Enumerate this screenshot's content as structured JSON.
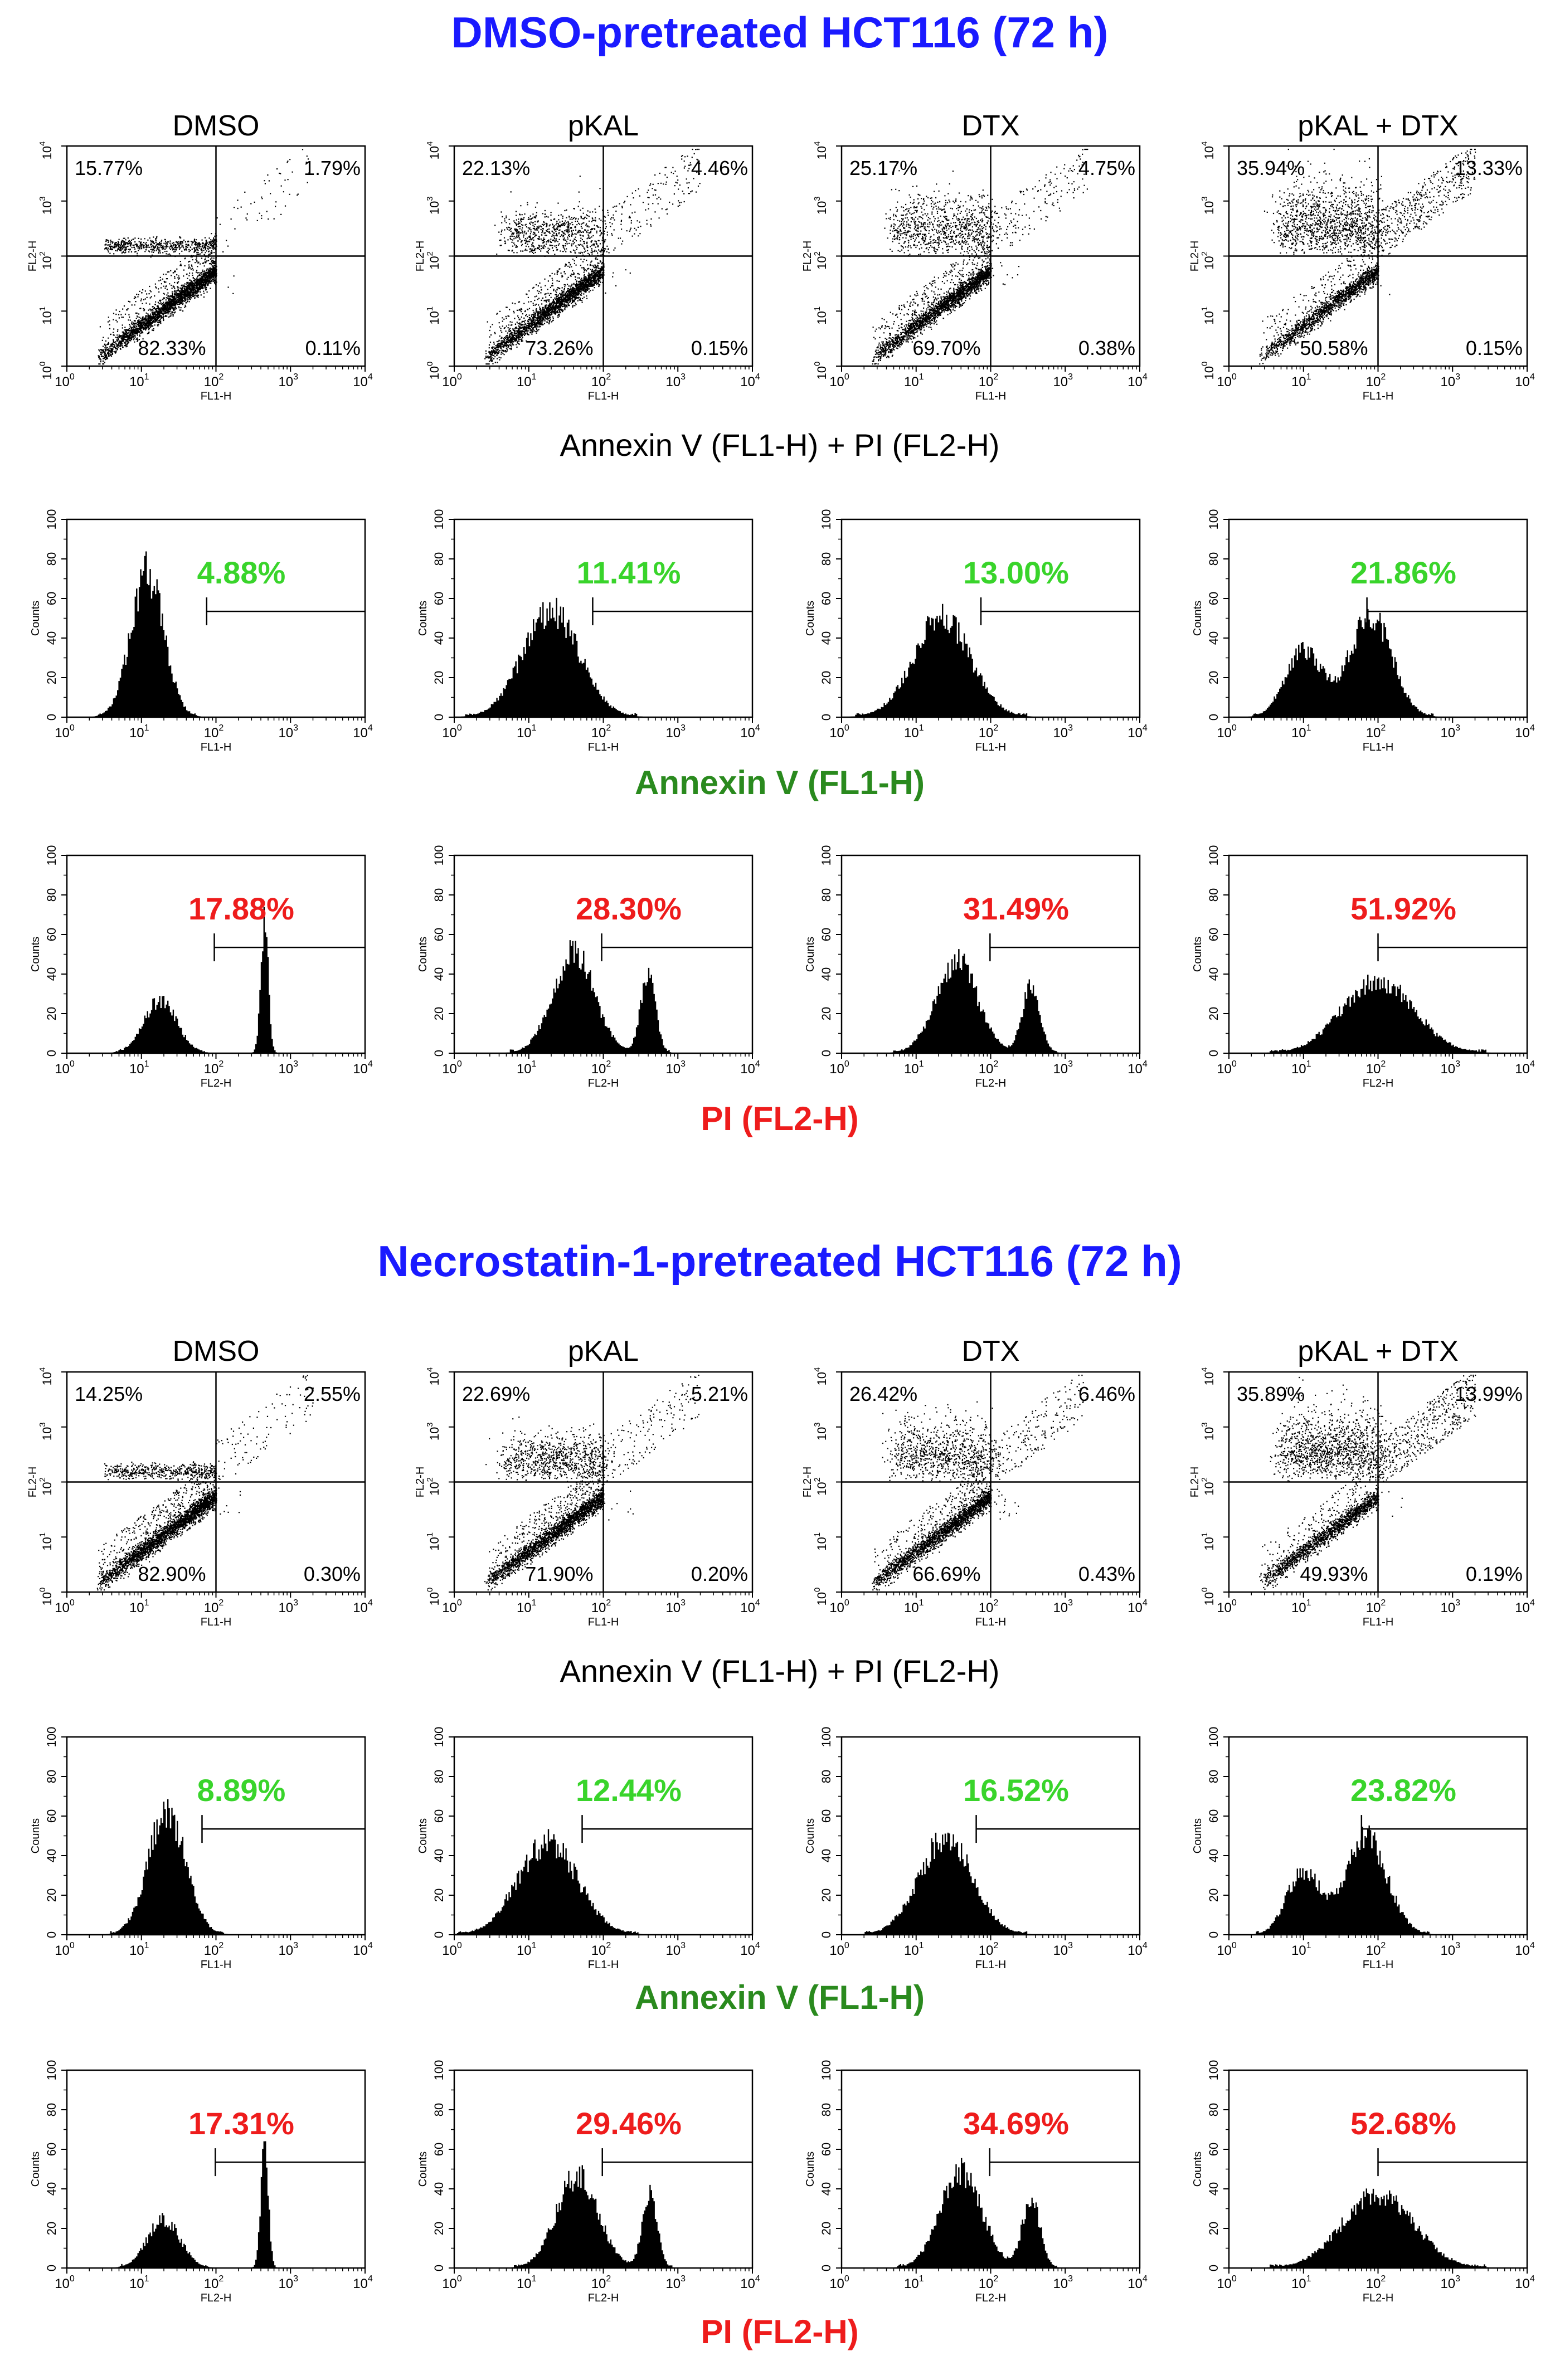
{
  "colors": {
    "title": "#1a1aff",
    "annexin": "#2a8a1e",
    "annexin_value": "#39d42b",
    "pi": "#ee1c1c",
    "black": "#000000"
  },
  "chart_data": {
    "type": "flow-cytometry-panels",
    "columns": [
      "DMSO",
      "pKAL",
      "DTX",
      "pKAL + DTX"
    ],
    "sections": [
      {
        "title": "DMSO-pretreated HCT116 (72 h)",
        "scatter": {
          "type": "scatter",
          "xlabel": "FL1-H",
          "ylabel": "FL2-H",
          "caption": "Annexin V (FL1-H) + PI (FL2-H)",
          "quadrants": [
            {
              "ul": "15.77%",
              "ur": "1.79%",
              "ll": "82.33%",
              "lr": "0.11%"
            },
            {
              "ul": "22.13%",
              "ur": "4.46%",
              "ll": "73.26%",
              "lr": "0.15%"
            },
            {
              "ul": "25.17%",
              "ur": "4.75%",
              "ll": "69.70%",
              "lr": "0.38%"
            },
            {
              "ul": "35.94%",
              "ur": "13.33%",
              "ll": "50.58%",
              "lr": "0.15%"
            }
          ]
        },
        "annexin": {
          "type": "histogram",
          "xlabel": "FL1-H",
          "ylabel": "Counts",
          "caption": "Annexin V (FL1-H)",
          "values": [
            "4.88%",
            "11.41%",
            "13.00%",
            "21.86%"
          ]
        },
        "pi": {
          "type": "histogram",
          "xlabel": "FL2-H",
          "ylabel": "Counts",
          "caption": "PI (FL2-H)",
          "values": [
            "17.88%",
            "28.30%",
            "31.49%",
            "51.92%"
          ]
        }
      },
      {
        "title": "Necrostatin-1-pretreated HCT116 (72 h)",
        "scatter": {
          "type": "scatter",
          "xlabel": "FL1-H",
          "ylabel": "FL2-H",
          "caption": "Annexin V (FL1-H) + PI (FL2-H)",
          "quadrants": [
            {
              "ul": "14.25%",
              "ur": "2.55%",
              "ll": "82.90%",
              "lr": "0.30%"
            },
            {
              "ul": "22.69%",
              "ur": "5.21%",
              "ll": "71.90%",
              "lr": "0.20%"
            },
            {
              "ul": "26.42%",
              "ur": "6.46%",
              "ll": "66.69%",
              "lr": "0.43%"
            },
            {
              "ul": "35.89%",
              "ur": "13.99%",
              "ll": "49.93%",
              "lr": "0.19%"
            }
          ]
        },
        "annexin": {
          "type": "histogram",
          "xlabel": "FL1-H",
          "ylabel": "Counts",
          "caption": "Annexin V (FL1-H)",
          "values": [
            "8.89%",
            "12.44%",
            "16.52%",
            "23.82%"
          ]
        },
        "pi": {
          "type": "histogram",
          "xlabel": "FL2-H",
          "ylabel": "Counts",
          "caption": "PI (FL2-H)",
          "values": [
            "17.31%",
            "29.46%",
            "34.69%",
            "52.68%"
          ]
        }
      }
    ],
    "x_axis": {
      "scale": "log",
      "range": [
        1,
        10000
      ],
      "ticks": [
        "10",
        "10",
        "10",
        "10",
        "10"
      ],
      "tick_exponents": [
        "0",
        "1",
        "2",
        "3",
        "4"
      ]
    },
    "scatter_y_axis": {
      "scale": "log",
      "range": [
        1,
        10000
      ],
      "ticks": [
        "10",
        "10",
        "10",
        "10",
        "10"
      ],
      "tick_exponents": [
        "0",
        "1",
        "2",
        "3",
        "4"
      ]
    },
    "hist_y_axis": {
      "range": [
        0,
        100
      ],
      "ticks": [
        "0",
        "20",
        "40",
        "60",
        "80",
        "100"
      ]
    },
    "annexin_gate_start": [
      75,
      72,
      74,
      71,
      65,
      52,
      64,
      60
    ],
    "pi_gate_start": [
      95,
      95,
      98,
      100,
      98,
      97,
      97,
      100
    ],
    "annexin_shape": [
      {
        "peaks": [
          [
            12,
            0.8,
            0.22
          ]
        ],
        "max": 75
      },
      {
        "peaks": [
          [
            20,
            0.8,
            0.38
          ]
        ],
        "max": 55
      },
      {
        "peaks": [
          [
            22,
            0.8,
            0.38
          ]
        ],
        "max": 52
      },
      {
        "peaks": [
          [
            10,
            0.4,
            0.24
          ],
          [
            80,
            0.6,
            0.28
          ]
        ],
        "max": 53
      },
      {
        "peaks": [
          [
            22,
            0.8,
            0.25
          ]
        ],
        "max": 64
      },
      {
        "peaks": [
          [
            18,
            0.8,
            0.4
          ]
        ],
        "max": 48
      },
      {
        "peaks": [
          [
            25,
            0.8,
            0.36
          ]
        ],
        "max": 50
      },
      {
        "peaks": [
          [
            10,
            0.4,
            0.22
          ],
          [
            70,
            0.6,
            0.28
          ]
        ],
        "max": 50
      }
    ],
    "pi_shape": [
      {
        "peaks": [
          [
            18,
            0.3,
            0.22
          ],
          [
            450,
            0.75,
            0.05
          ]
        ],
        "max": 68
      },
      {
        "peaks": [
          [
            40,
            0.7,
            0.28
          ],
          [
            400,
            0.55,
            0.1
          ]
        ],
        "max": 52
      },
      {
        "peaks": [
          [
            35,
            0.7,
            0.28
          ],
          [
            350,
            0.5,
            0.12
          ]
        ],
        "max": 48
      },
      {
        "peaks": [
          [
            100,
            0.8,
            0.48
          ]
        ],
        "max": 38
      },
      {
        "peaks": [
          [
            20,
            0.3,
            0.22
          ],
          [
            450,
            0.75,
            0.05
          ]
        ],
        "max": 62
      },
      {
        "peaks": [
          [
            45,
            0.7,
            0.28
          ],
          [
            420,
            0.55,
            0.1
          ]
        ],
        "max": 48
      },
      {
        "peaks": [
          [
            40,
            0.7,
            0.28
          ],
          [
            350,
            0.5,
            0.12
          ]
        ],
        "max": 50
      },
      {
        "peaks": [
          [
            100,
            0.8,
            0.48
          ]
        ],
        "max": 38
      }
    ]
  }
}
